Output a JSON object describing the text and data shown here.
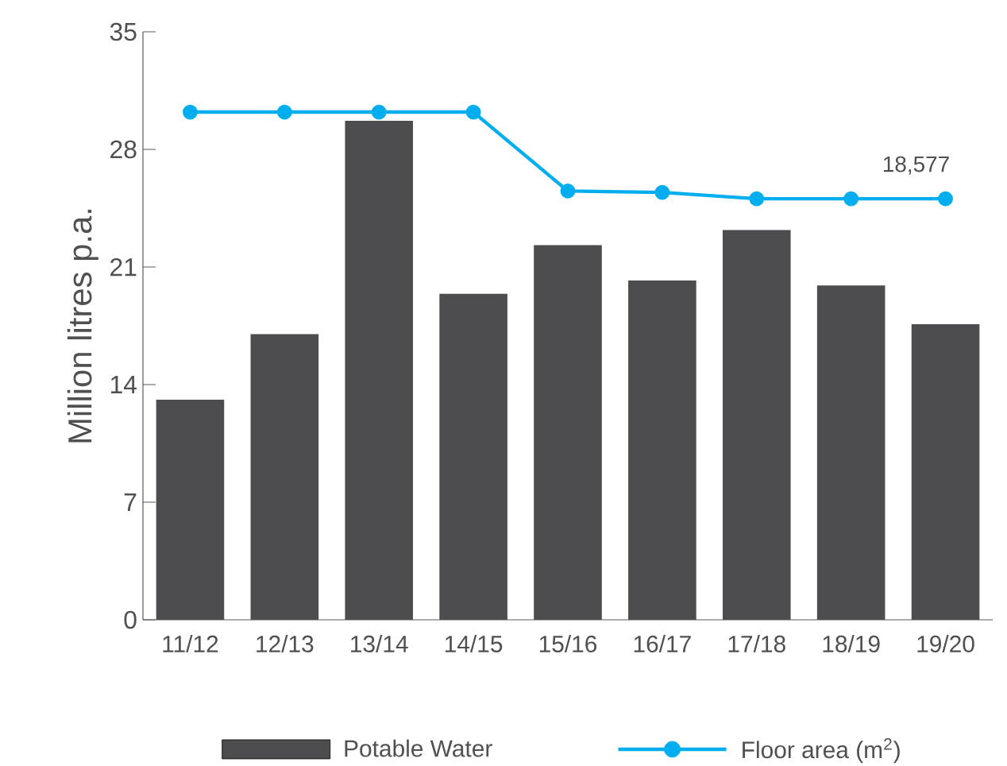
{
  "chart_data": {
    "type": "bar",
    "ylabel": "Million litres p.a.",
    "categories": [
      "11/12",
      "12/13",
      "13/14",
      "14/15",
      "15/16",
      "16/17",
      "17/18",
      "18/19",
      "19/20"
    ],
    "series": [
      {
        "name": "Potable Water",
        "color": "#4d4d4f",
        "values": [
          13.1,
          17,
          29.7,
          19.4,
          22.3,
          20.2,
          23.2,
          19.9,
          17.6
        ]
      },
      {
        "name": "Floor area (m$^{2}$)",
        "type": "line",
        "axis": "y2",
        "color": "#00aeef",
        "marker": "circle",
        "values": [
          22402,
          22402,
          22402,
          22402,
          18918,
          18859,
          18577,
          18577,
          18577
        ],
        "value_labels": [
          null,
          null,
          null,
          null,
          null,
          null,
          null,
          null,
          "18,577"
        ]
      }
    ],
    "ylim": [
      0,
      35
    ],
    "yticks": [
      0,
      7,
      14,
      21,
      28,
      35
    ],
    "y2lim": [
      0,
      25946
    ],
    "tick_labels": "xy",
    "legend": "bottom",
    "grid": false
  }
}
